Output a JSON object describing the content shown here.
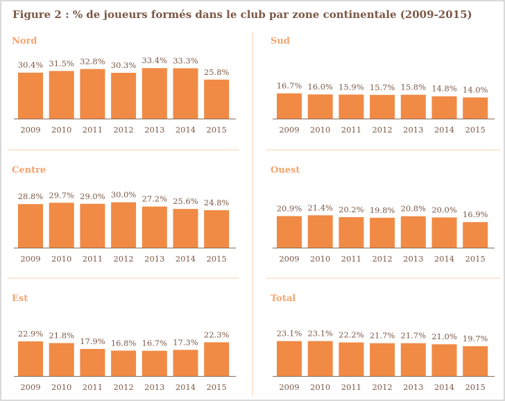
{
  "title": "Figure 2 : % de joueurs formés dans le club par zone continentale (2009-2015)",
  "colors": {
    "bar": "#f08a45",
    "panel_title": "#f5a46e",
    "text": "#7b5846",
    "divider": "#fbcfa8",
    "axis": "#8a6a58"
  },
  "chart_data": [
    {
      "type": "bar",
      "title": "Nord",
      "categories": [
        "2009",
        "2010",
        "2011",
        "2012",
        "2013",
        "2014",
        "2015"
      ],
      "values": [
        30.4,
        31.5,
        32.8,
        30.3,
        33.4,
        33.3,
        25.8
      ],
      "labels": [
        "30.4%",
        "31.5%",
        "32.8%",
        "30.3%",
        "33.4%",
        "33.3%",
        "25.8%"
      ]
    },
    {
      "type": "bar",
      "title": "Sud",
      "categories": [
        "2009",
        "2010",
        "2011",
        "2012",
        "2013",
        "2014",
        "2015"
      ],
      "values": [
        16.7,
        16.0,
        15.9,
        15.7,
        15.8,
        14.8,
        14.0
      ],
      "labels": [
        "16.7%",
        "16.0%",
        "15.9%",
        "15.7%",
        "15.8%",
        "14.8%",
        "14.0%"
      ]
    },
    {
      "type": "bar",
      "title": "Centre",
      "categories": [
        "2009",
        "2010",
        "2011",
        "2012",
        "2013",
        "2014",
        "2015"
      ],
      "values": [
        28.8,
        29.7,
        29.0,
        30.0,
        27.2,
        25.6,
        24.8
      ],
      "labels": [
        "28.8%",
        "29.7%",
        "29.0%",
        "30.0%",
        "27.2%",
        "25.6%",
        "24.8%"
      ]
    },
    {
      "type": "bar",
      "title": "Ouest",
      "categories": [
        "2009",
        "2010",
        "2011",
        "2012",
        "2013",
        "2014",
        "2015"
      ],
      "values": [
        20.9,
        21.4,
        20.2,
        19.8,
        20.8,
        20.0,
        16.9
      ],
      "labels": [
        "20.9%",
        "21.4%",
        "20.2%",
        "19.8%",
        "20.8%",
        "20.0%",
        "16.9%"
      ]
    },
    {
      "type": "bar",
      "title": "Est",
      "categories": [
        "2009",
        "2010",
        "2011",
        "2012",
        "2013",
        "2014",
        "2015"
      ],
      "values": [
        22.9,
        21.8,
        17.9,
        16.8,
        16.7,
        17.3,
        22.3
      ],
      "labels": [
        "22.9%",
        "21.8%",
        "17.9%",
        "16.8%",
        "16.7%",
        "17.3%",
        "22.3%"
      ]
    },
    {
      "type": "bar",
      "title": "Total",
      "categories": [
        "2009",
        "2010",
        "2011",
        "2012",
        "2013",
        "2014",
        "2015"
      ],
      "values": [
        23.1,
        23.1,
        22.2,
        21.7,
        21.7,
        21.0,
        19.7
      ],
      "labels": [
        "23.1%",
        "23.1%",
        "22.2%",
        "21.7%",
        "21.7%",
        "21.0%",
        "19.7%"
      ]
    }
  ]
}
